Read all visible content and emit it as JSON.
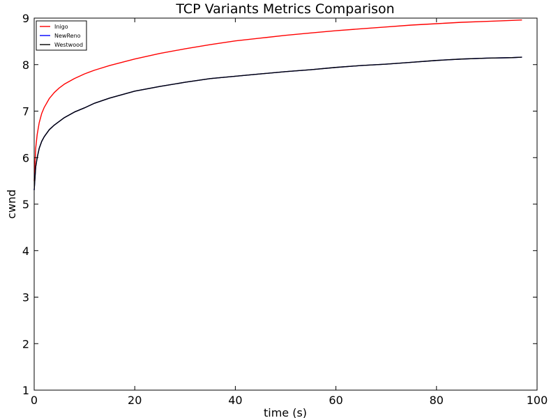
{
  "chart_data": {
    "type": "line",
    "title": "TCP Variants Metrics Comparison",
    "xlabel": "time (s)",
    "ylabel": "cwnd",
    "xlim": [
      0,
      100
    ],
    "ylim": [
      1,
      9
    ],
    "xticks": [
      0,
      20,
      40,
      60,
      80,
      100
    ],
    "yticks": [
      1,
      2,
      3,
      4,
      5,
      6,
      7,
      8,
      9
    ],
    "grid": false,
    "legend_position": "top-left",
    "series": [
      {
        "name": "Inigo",
        "color": "#ff0000",
        "x": [
          0,
          0.3,
          0.6,
          1,
          1.5,
          2,
          3,
          4,
          5,
          6,
          8,
          10,
          12,
          15,
          20,
          25,
          30,
          35,
          40,
          45,
          50,
          55,
          60,
          65,
          70,
          75,
          80,
          85,
          90,
          95,
          97
        ],
        "y": [
          5.5,
          6.2,
          6.5,
          6.75,
          6.95,
          7.08,
          7.27,
          7.4,
          7.5,
          7.58,
          7.7,
          7.8,
          7.88,
          7.98,
          8.12,
          8.24,
          8.34,
          8.43,
          8.51,
          8.57,
          8.63,
          8.68,
          8.73,
          8.77,
          8.81,
          8.85,
          8.88,
          8.91,
          8.93,
          8.95,
          8.96
        ]
      },
      {
        "name": "NewReno",
        "color": "#0000ff",
        "x": [
          0,
          0.3,
          0.6,
          1,
          1.5,
          2,
          3,
          4,
          5,
          6,
          8,
          10,
          12,
          15,
          20,
          25,
          30,
          35,
          40,
          45,
          50,
          55,
          60,
          65,
          70,
          75,
          80,
          85,
          90,
          95,
          97
        ],
        "y": [
          5.3,
          5.8,
          6.0,
          6.2,
          6.35,
          6.45,
          6.6,
          6.7,
          6.78,
          6.86,
          6.98,
          7.07,
          7.17,
          7.28,
          7.43,
          7.53,
          7.62,
          7.7,
          7.75,
          7.8,
          7.85,
          7.89,
          7.94,
          7.98,
          8.01,
          8.05,
          8.09,
          8.12,
          8.14,
          8.15,
          8.16
        ]
      },
      {
        "name": "Westwood",
        "color": "#000000",
        "x": [
          0,
          0.3,
          0.6,
          1,
          1.5,
          2,
          3,
          4,
          5,
          6,
          8,
          10,
          12,
          15,
          20,
          25,
          30,
          35,
          40,
          45,
          50,
          55,
          60,
          65,
          70,
          75,
          80,
          85,
          90,
          95,
          97
        ],
        "y": [
          5.3,
          5.8,
          6.0,
          6.2,
          6.35,
          6.45,
          6.6,
          6.7,
          6.78,
          6.86,
          6.98,
          7.07,
          7.17,
          7.28,
          7.43,
          7.53,
          7.62,
          7.7,
          7.75,
          7.8,
          7.85,
          7.89,
          7.94,
          7.98,
          8.01,
          8.05,
          8.09,
          8.12,
          8.14,
          8.15,
          8.16
        ]
      }
    ]
  }
}
